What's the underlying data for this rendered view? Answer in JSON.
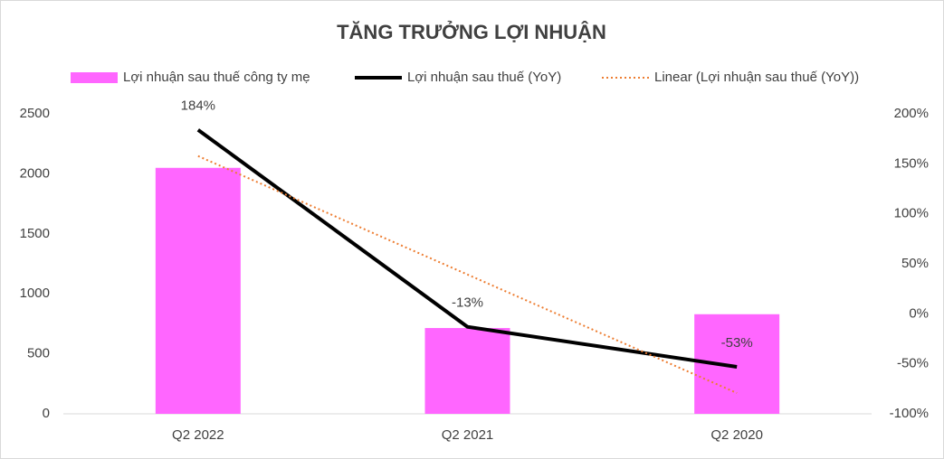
{
  "chart_data": {
    "type": "bar-line",
    "title": "TĂNG TRƯỞNG LỢI NHUẬN",
    "categories": [
      "Q2 2022",
      "Q2 2021",
      "Q2 2020"
    ],
    "series": [
      {
        "name": "Lợi nhuận sau thuế công ty mẹ",
        "type": "bar",
        "color": "#ff66ff",
        "axis": "y",
        "values": [
          2050,
          715,
          830
        ]
      },
      {
        "name": "Lợi nhuận sau thuế (YoY)",
        "type": "line",
        "color": "#000000",
        "axis": "y2",
        "values": [
          184,
          -13,
          -53
        ],
        "value_labels": [
          "184%",
          "-13%",
          "-53%"
        ]
      },
      {
        "name": "Linear (Lợi nhuận sau thuế (YoY))",
        "type": "line",
        "color": "#ed7d31",
        "axis": "y2",
        "dash": "dotted",
        "values": [
          157.8,
          39.3,
          -79.2
        ]
      }
    ],
    "ylim": [
      0,
      2500
    ],
    "yticks": [
      0,
      500,
      1000,
      1500,
      2000,
      2500
    ],
    "y2lim": [
      -100,
      200
    ],
    "y2ticks": [
      {
        "value": -100,
        "label": "-100%"
      },
      {
        "value": -50,
        "label": "-50%"
      },
      {
        "value": 0,
        "label": "0%"
      },
      {
        "value": 50,
        "label": "50%"
      },
      {
        "value": 100,
        "label": "100%"
      },
      {
        "value": 150,
        "label": "150%"
      },
      {
        "value": 200,
        "label": "200%"
      }
    ],
    "grid": false
  }
}
